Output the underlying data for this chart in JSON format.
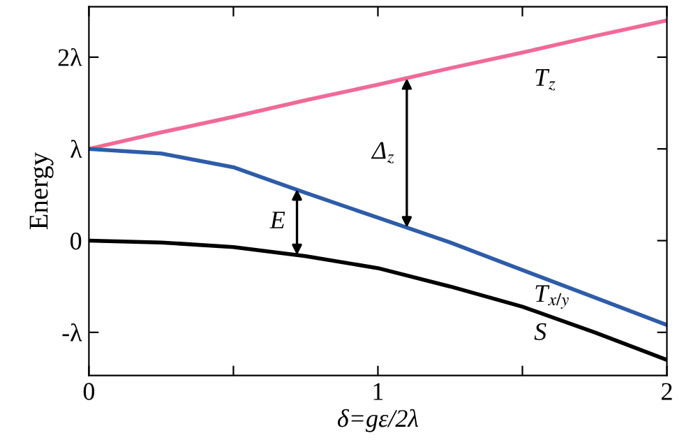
{
  "chart_data": {
    "type": "line",
    "xlabel": "δ=gε/2λ",
    "ylabel": "Energy",
    "xlim": [
      0,
      2
    ],
    "ylim": [
      -1.47,
      2.55
    ],
    "xticks": [
      0,
      {
        "value": 0.5,
        "label": null
      },
      1,
      {
        "value": 1.5,
        "label": null
      },
      2
    ],
    "yticks": [
      {
        "value": -1,
        "label": "-λ"
      },
      0,
      {
        "value": 1,
        "label": "λ"
      },
      {
        "value": 2,
        "label": "2λ"
      }
    ],
    "x": [
      0,
      0.25,
      0.5,
      0.75,
      1,
      1.25,
      1.5,
      1.75,
      2
    ],
    "series": [
      {
        "name": "T$_{z}$",
        "color": "#f06a96",
        "values": [
          1,
          1.18,
          1.35,
          1.53,
          1.7,
          1.88,
          2.05,
          2.23,
          2.4
        ]
      },
      {
        "name": "T$_{x/y}$",
        "color": "#2e5ca8",
        "values": [
          1,
          0.95,
          0.8,
          0.52,
          0.25,
          -0.02,
          -0.32,
          -0.62,
          -0.92
        ]
      },
      {
        "name": "S",
        "color": "#000000",
        "values": [
          0,
          -0.02,
          -0.07,
          -0.17,
          -0.3,
          -0.5,
          -0.72,
          -1.0,
          -1.3
        ]
      }
    ],
    "annotations": [
      {
        "text": "E",
        "x": 0.72,
        "y": 0.56
      },
      {
        "text": "Δ$_{z}$",
        "x": 1.1,
        "y": 1.77
      }
    ],
    "grid": false,
    "legend": false,
    "marker": "none",
    "line_style": "solid"
  }
}
